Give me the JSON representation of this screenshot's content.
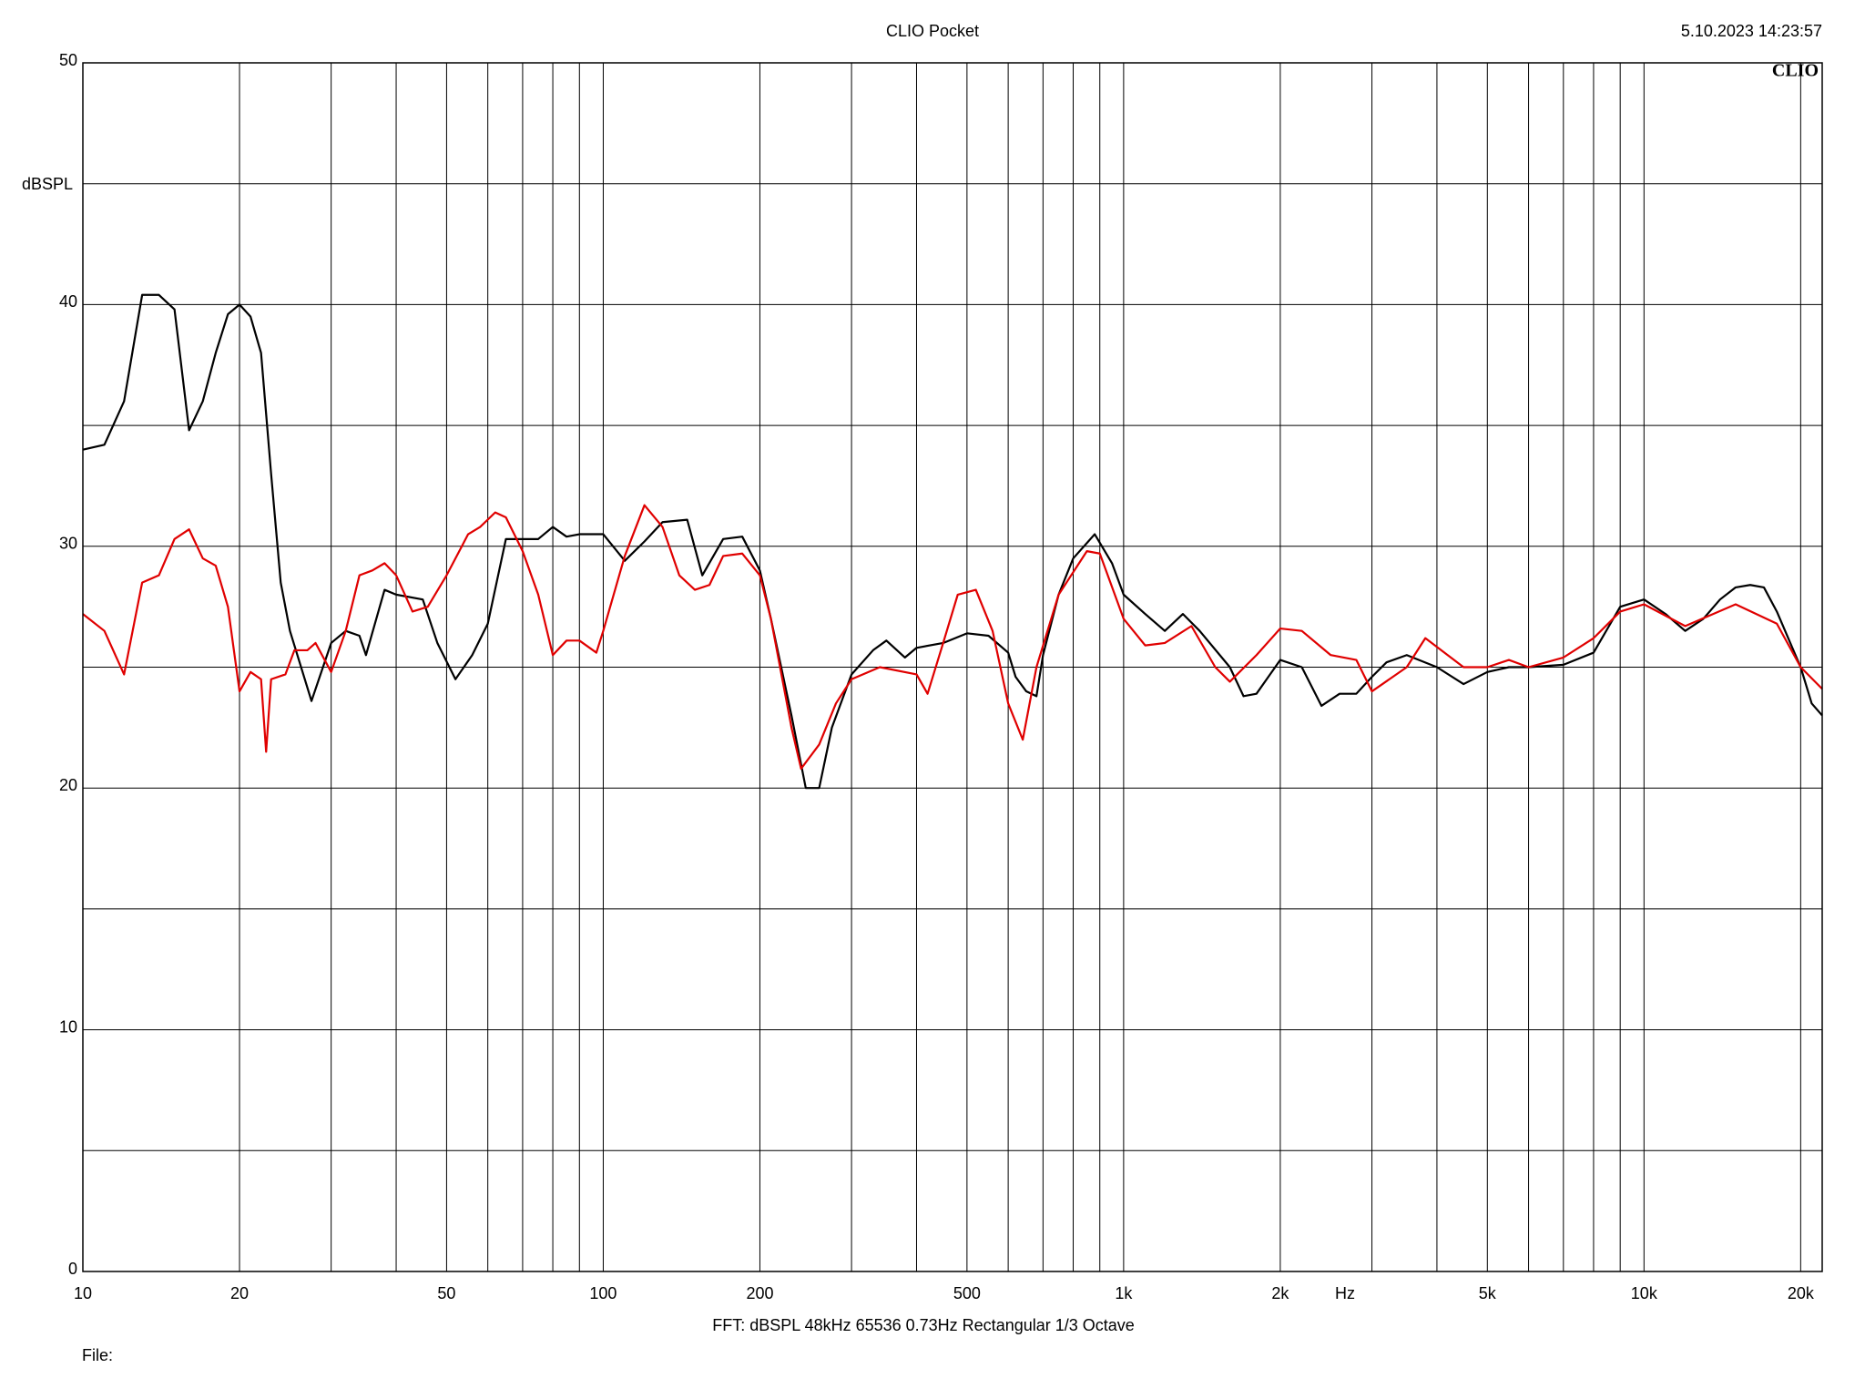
{
  "chart_data": {
    "type": "line",
    "title": "CLIO Pocket",
    "timestamp": "5.10.2023 14:23:57",
    "logo": "CLIO",
    "y_label": "dBSPL",
    "x_label": "Hz",
    "footer": "FFT:  dBSPL  48kHz  65536  0.73Hz  Rectangular  1/3 Octave",
    "file_label": "File:",
    "xscale": "log",
    "grid": true,
    "xlim": [
      10,
      22000
    ],
    "ylim": [
      0,
      50
    ],
    "yticks": [
      0,
      10,
      20,
      30,
      40,
      50
    ],
    "yminor": [
      5,
      15,
      25,
      35,
      45
    ],
    "xticks": [
      10,
      20,
      50,
      100,
      200,
      500,
      {
        "value": 1000,
        "label": "1k"
      },
      {
        "value": 2000,
        "label": "2k"
      },
      {
        "value": 5000,
        "label": "5k"
      },
      {
        "value": 10000,
        "label": "10k"
      },
      {
        "value": 20000,
        "label": "20k"
      }
    ],
    "xminor": [
      30,
      40,
      60,
      70,
      80,
      90,
      300,
      400,
      600,
      700,
      800,
      900,
      3000,
      4000,
      6000,
      7000,
      8000,
      9000
    ],
    "series": [
      {
        "color": "#000000",
        "x": [
          10,
          11,
          12,
          13,
          14,
          15,
          16,
          17,
          18,
          19,
          20,
          21,
          22,
          23,
          24,
          25,
          27.5,
          30,
          32,
          34,
          35,
          38,
          40,
          45,
          48,
          52,
          56,
          60,
          65,
          70,
          75,
          80,
          85,
          90,
          100,
          110,
          120,
          130,
          145,
          155,
          170,
          185,
          200,
          210,
          230,
          245,
          260,
          275,
          300,
          330,
          350,
          380,
          400,
          450,
          500,
          550,
          600,
          620,
          650,
          680,
          700,
          750,
          800,
          880,
          950,
          1000,
          1100,
          1200,
          1300,
          1400,
          1600,
          1700,
          1800,
          2000,
          2200,
          2400,
          2600,
          2800,
          3000,
          3200,
          3500,
          4000,
          4500,
          5000,
          5500,
          6000,
          7000,
          8000,
          9000,
          10000,
          11000,
          12000,
          13000,
          14000,
          15000,
          16000,
          17000,
          18000,
          20000,
          21000,
          22000
        ],
        "values": [
          34,
          34.2,
          36,
          40.4,
          40.4,
          39.8,
          34.8,
          36,
          38,
          39.6,
          40,
          39.5,
          38,
          33,
          28.5,
          26.5,
          23.6,
          26,
          26.5,
          26.3,
          25.5,
          28.2,
          28,
          27.8,
          26,
          24.5,
          25.5,
          26.8,
          30.3,
          30.3,
          30.3,
          30.8,
          30.4,
          30.5,
          30.5,
          29.4,
          30.2,
          31,
          31.1,
          28.8,
          30.3,
          30.4,
          29,
          27,
          23,
          20,
          20,
          22.5,
          24.7,
          25.7,
          26.1,
          25.4,
          25.8,
          26,
          26.4,
          26.3,
          25.6,
          24.6,
          24,
          23.8,
          25.5,
          28,
          29.5,
          30.5,
          29.3,
          28,
          27.2,
          26.5,
          27.2,
          26.5,
          25,
          23.8,
          23.9,
          25.3,
          25,
          23.4,
          23.9,
          23.9,
          24.6,
          25.2,
          25.5,
          25,
          24.3,
          24.8,
          25,
          25,
          25.1,
          25.6,
          27.5,
          27.8,
          27.2,
          26.5,
          27,
          27.8,
          28.3,
          28.4,
          28.3,
          27.3,
          25,
          23.5,
          23
        ]
      },
      {
        "color": "#e00000",
        "x": [
          10,
          11,
          12,
          13,
          14,
          15,
          16,
          17,
          18,
          19,
          20,
          21,
          22,
          22.5,
          23,
          24.5,
          25.5,
          27,
          28,
          30,
          32,
          34,
          36,
          38,
          40,
          43,
          46,
          50,
          55,
          58,
          62,
          65,
          70,
          75,
          80,
          85,
          90,
          97,
          100,
          110,
          120,
          130,
          140,
          150,
          160,
          170,
          185,
          200,
          210,
          230,
          240,
          260,
          280,
          300,
          340,
          400,
          420,
          450,
          480,
          520,
          560,
          600,
          640,
          680,
          750,
          850,
          900,
          1000,
          1100,
          1200,
          1350,
          1500,
          1600,
          1800,
          2000,
          2200,
          2500,
          2800,
          3000,
          3500,
          3800,
          4500,
          5000,
          5500,
          6000,
          7000,
          8000,
          9000,
          10000,
          12000,
          15000,
          18000,
          20000,
          22000
        ],
        "values": [
          27.2,
          26.5,
          24.7,
          28.5,
          28.8,
          30.3,
          30.7,
          29.5,
          29.2,
          27.5,
          24,
          24.8,
          24.5,
          21.5,
          24.5,
          24.7,
          25.7,
          25.7,
          26,
          24.8,
          26.5,
          28.8,
          29,
          29.3,
          28.8,
          27.3,
          27.5,
          28.8,
          30.5,
          30.8,
          31.4,
          31.2,
          29.8,
          28,
          25.5,
          26.1,
          26.1,
          25.6,
          26.5,
          29.6,
          31.7,
          30.8,
          28.8,
          28.2,
          28.4,
          29.6,
          29.7,
          28.8,
          27,
          22.5,
          20.8,
          21.8,
          23.5,
          24.5,
          25,
          24.7,
          23.9,
          26,
          28,
          28.2,
          26.5,
          23.5,
          22,
          25,
          28,
          29.8,
          29.7,
          27,
          25.9,
          26,
          26.7,
          25,
          24.4,
          25.5,
          26.6,
          26.5,
          25.5,
          25.3,
          24,
          25,
          26.2,
          25,
          25,
          25.3,
          25,
          25.4,
          26.2,
          27.3,
          27.6,
          26.7,
          27.6,
          26.8,
          25,
          24.1
        ]
      }
    ]
  }
}
